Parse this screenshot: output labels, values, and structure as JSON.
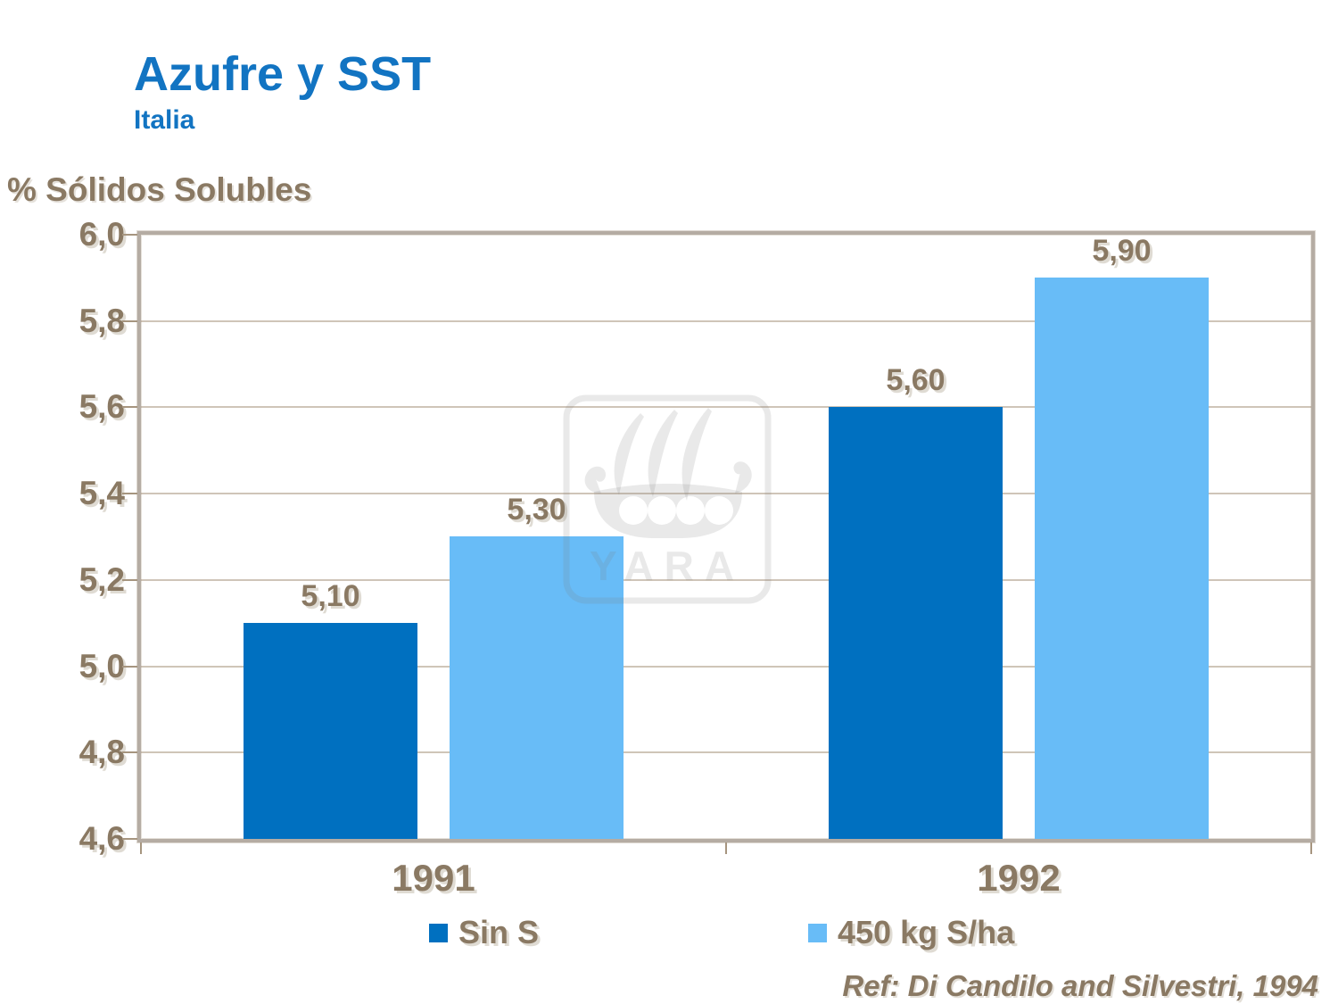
{
  "header": {
    "title": "Azufre y SST",
    "subtitle": "Italia"
  },
  "chart_data": {
    "type": "bar",
    "title": "Azufre y SST",
    "subtitle": "Italia",
    "y_axis_title": "% Sólidos Solubles",
    "categories": [
      "1991",
      "1992"
    ],
    "series": [
      {
        "name": "Sin S",
        "color": "#0070C0",
        "values": [
          5.1,
          5.6
        ],
        "labels": [
          "5,10",
          "5,60"
        ]
      },
      {
        "name": "450 kg S/ha",
        "color": "#68BCF7",
        "values": [
          5.3,
          5.9
        ],
        "labels": [
          "5,30",
          "5,90"
        ]
      }
    ],
    "ylim": [
      4.6,
      6.0
    ],
    "ytick_step": 0.2,
    "ytick_labels": [
      "6,0",
      "5,8",
      "5,6",
      "5,4",
      "5,2",
      "5,0",
      "4,8",
      "4,6"
    ],
    "grid": true,
    "legend_position": "bottom"
  },
  "watermark": {
    "text": "YARA"
  },
  "footer": {
    "reference": "Ref: Di Candilo and Silvestri, 1994"
  },
  "colors": {
    "title_blue": "#1274C2",
    "axis_text_brown": "#8a7963",
    "gridline": "#a8967e",
    "plot_border": "#b5aca3"
  }
}
